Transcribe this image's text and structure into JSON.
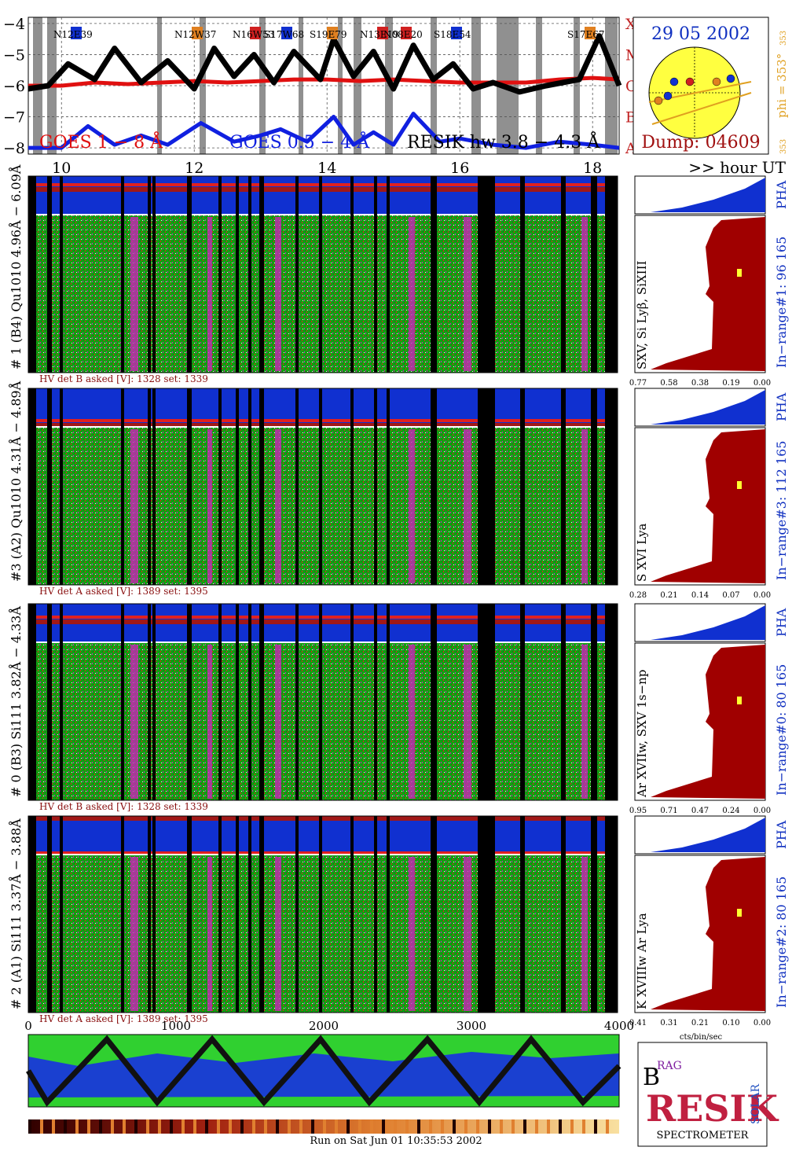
{
  "colors": {
    "goes_long": "#e01010",
    "goes_short": "#1020e0",
    "resik": "#000000",
    "spectrum_bg": "#10a010",
    "spectrum_red": "#e02020",
    "spectrum_magenta": "#d020c0",
    "pha_blue": "#1030d0",
    "hist_red": "#a00000",
    "flare_class": "#c02020",
    "date_blue": "#1030c0",
    "dump_red": "#a01010",
    "phi_orange": "#e0a020",
    "gray_band": "#909090"
  },
  "top_panel": {
    "y_ticks": [
      "−4",
      "−5",
      "−6",
      "−7",
      "−8"
    ],
    "flare_classes": [
      "X",
      "M",
      "C",
      "B",
      "A"
    ],
    "x_ticks": [
      "10",
      "12",
      "14",
      "16",
      "18"
    ],
    "hour_label": ">> hour UT",
    "legend_goes_long": "GOES 1 − 8 Å",
    "legend_goes_short": "GOES 0.5 − 4 Å",
    "legend_resik": "RESIK hw 3.8 − 4.3 Å",
    "active_regions": [
      "N12E39",
      "N12W37",
      "N16W53",
      "S17W68",
      "S19E79",
      "N13E19",
      "N08E20",
      "S18E54",
      "S17E67"
    ]
  },
  "sun_box": {
    "date": "29 05 2002",
    "dump": "Dump: 04609",
    "phi": "phi = 353°",
    "phi_value": "353",
    "phi_small": "353"
  },
  "detectors": [
    {
      "label": "# 1 (B4) Qu1010 4.96Å − 6.09Å",
      "lines": "SXV, Si Lyβ, SiXIII",
      "range": "In−range#1:  96 165",
      "hv": "HV det B asked [V]:  1328 set:  1339",
      "pha": "PHA",
      "hist_ticks": [
        "0.77",
        "0.58",
        "0.38",
        "0.19",
        "0.00"
      ]
    },
    {
      "label": "#3 (A2) Qu1010  4.31Å − 4.89Å",
      "lines": "S XVI Lya",
      "range": "In−range#3:  112 165",
      "hv": "HV det A asked [V]:  1389 set:  1395",
      "pha": "PHA",
      "hist_ticks": [
        "0.28",
        "0.21",
        "0.14",
        "0.07",
        "0.00"
      ]
    },
    {
      "label": "# 0 (B3) Si111  3.82Å − 4.33Å",
      "lines": "Ar XVIIw,  SXV 1s−np",
      "range": "In−range#0:  80 165",
      "hv": "HV det B asked [V]:  1328 set:  1339",
      "pha": "PHA",
      "hist_ticks": [
        "0.95",
        "0.71",
        "0.47",
        "0.24",
        "0.00"
      ]
    },
    {
      "label": "# 2 (A1) Si111  3.37Å − 3.88Å",
      "lines": "K XVIIIw  Ar Lya",
      "range": "In−range#2:  80 165",
      "hv": "HV det A asked [V]:  1389 set:  1395",
      "pha": "PHA",
      "hist_ticks": [
        "0.41",
        "0.31",
        "0.21",
        "0.10",
        "0.00"
      ]
    }
  ],
  "hist_unit": "cts/bin/sec",
  "bottom_axis": [
    "0",
    "1000",
    "2000",
    "3000",
    "4000"
  ],
  "logo": {
    "letters_b": "B",
    "letters_rag": "RAG",
    "letters_resik": "RESIK",
    "letters_solar": "SOLAR",
    "spectrometer": "SPECTROMETER"
  },
  "footer": "Run on Sat Jun 01 10:35:53 2002",
  "chart_data": [
    {
      "type": "line",
      "title": "",
      "xlabel": ">> hour UT",
      "ylabel": "",
      "xlim": [
        9.5,
        18.4
      ],
      "ylim": [
        -8.2,
        -3.8
      ],
      "series": [
        {
          "name": "GOES 1 − 8 Å",
          "x": [
            9.5,
            10,
            10.5,
            11,
            11.5,
            12,
            12.5,
            13,
            13.5,
            14,
            14.5,
            15,
            15.5,
            16,
            16.5,
            17,
            17.5,
            18,
            18.4
          ],
          "values": [
            -6.0,
            -6.0,
            -5.9,
            -5.95,
            -5.9,
            -5.85,
            -5.9,
            -5.85,
            -5.8,
            -5.8,
            -5.85,
            -5.8,
            -5.85,
            -5.9,
            -5.9,
            -5.9,
            -5.8,
            -5.75,
            -5.8
          ]
        },
        {
          "name": "GOES 0.5 − 4 Å",
          "x": [
            9.5,
            10,
            10.4,
            10.8,
            11.2,
            11.6,
            12.1,
            12.6,
            13.0,
            13.3,
            13.7,
            14.1,
            14.4,
            14.7,
            15.0,
            15.3,
            15.7,
            16.0,
            16.5,
            17.0,
            17.5,
            18.0,
            18.4
          ],
          "values": [
            -8.0,
            -8.0,
            -7.3,
            -7.9,
            -7.6,
            -7.9,
            -7.2,
            -7.8,
            -7.6,
            -7.4,
            -7.8,
            -7.0,
            -7.9,
            -7.5,
            -7.9,
            -6.9,
            -7.8,
            -7.7,
            -7.9,
            -8.0,
            -7.8,
            -7.9,
            -8.0
          ]
        },
        {
          "name": "RESIK hw 3.8 − 4.3 Å",
          "x": [
            9.5,
            9.8,
            10.1,
            10.5,
            10.8,
            11.2,
            11.6,
            12.0,
            12.3,
            12.6,
            12.9,
            13.2,
            13.5,
            13.9,
            14.1,
            14.4,
            14.7,
            15.0,
            15.3,
            15.6,
            15.9,
            16.2,
            16.5,
            16.9,
            17.3,
            17.8,
            18.1,
            18.4
          ],
          "values": [
            -6.1,
            -6.0,
            -5.3,
            -5.8,
            -4.8,
            -5.9,
            -5.2,
            -6.1,
            -4.8,
            -5.7,
            -5.0,
            -5.9,
            -4.9,
            -5.8,
            -4.5,
            -5.7,
            -4.9,
            -6.1,
            -4.7,
            -5.8,
            -5.3,
            -6.1,
            -5.9,
            -6.2,
            -6.0,
            -5.8,
            -4.4,
            -6.0
          ]
        }
      ]
    }
  ]
}
